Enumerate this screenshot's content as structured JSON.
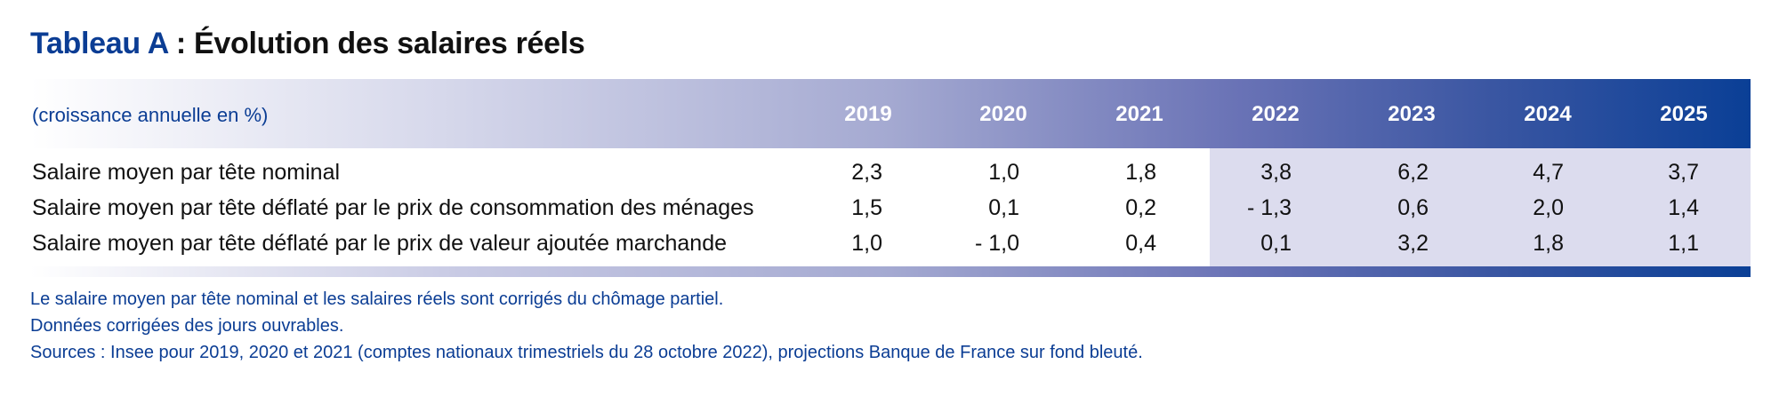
{
  "title": {
    "prefix": "Tableau A",
    "text": " : Évolution des salaires réels"
  },
  "table": {
    "unit_label": "(croissance annuelle en %)",
    "years": [
      "2019",
      "2020",
      "2021",
      "2022",
      "2023",
      "2024",
      "2025"
    ],
    "projection_years": [
      "2022",
      "2023",
      "2024",
      "2025"
    ],
    "projection_shade_color": "#dcdcee",
    "rows": [
      {
        "label": "Salaire moyen par tête nominal",
        "values": [
          "2,3",
          "1,0",
          "1,8",
          "3,8",
          "6,2",
          "4,7",
          "3,7"
        ]
      },
      {
        "label": "Salaire moyen par tête déflaté par le prix de consommation des ménages",
        "values": [
          "1,5",
          "0,1",
          "0,2",
          "- 1,3",
          "0,6",
          "2,0",
          "1,4"
        ]
      },
      {
        "label": "Salaire moyen par tête déflaté par le prix de valeur ajoutée marchande",
        "values": [
          "1,0",
          "- 1,0",
          "0,4",
          "0,1",
          "3,2",
          "1,8",
          "1,1"
        ]
      }
    ]
  },
  "notes": [
    "Le salaire moyen par tête nominal et les salaires réels sont corrigés du chômage partiel.",
    "Données corrigées des jours ouvrables.",
    "Sources : Insee pour 2019, 2020 et 2021 (comptes nationaux trimestriels du 28 octobre 2022), projections Banque de France sur fond bleuté."
  ],
  "colors": {
    "brand_blue": "#0b3d94",
    "header_dark": "#0a3f96"
  }
}
